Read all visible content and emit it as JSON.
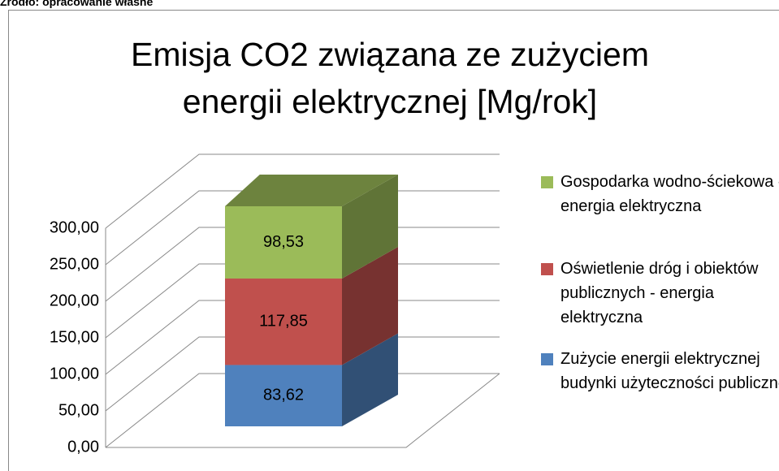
{
  "source": "Źródło: opracowanie własne",
  "chart_data": {
    "type": "bar3d_stacked",
    "title": "Emisja CO2 związana ze zużyciem energii elektrycznej [Mg/rok]",
    "categories": [
      null
    ],
    "series": [
      {
        "name": "Zużycie energii elektrycznej budynki użyteczności publicznej",
        "color": "#4f81bd",
        "values": [
          83.62
        ],
        "value_labels": [
          "83,62"
        ]
      },
      {
        "name": "Oświetlenie dróg i obiektów publicznych - energia elektryczna",
        "color": "#c0504d",
        "values": [
          117.85
        ],
        "value_labels": [
          "117,85"
        ]
      },
      {
        "name": "Gospodarka wodno-ściekowa - energia elektryczna",
        "color": "#9bbb59",
        "values": [
          98.53
        ],
        "value_labels": [
          "98,53"
        ]
      }
    ],
    "ylim": [
      0,
      300
    ],
    "yticks": [
      {
        "value": 0,
        "label": "0,00"
      },
      {
        "value": 50,
        "label": "50,00"
      },
      {
        "value": 100,
        "label": "100,00"
      },
      {
        "value": 150,
        "label": "150,00"
      },
      {
        "value": 200,
        "label": "200,00"
      },
      {
        "value": 250,
        "label": "250,00"
      },
      {
        "value": 300,
        "label": "300,00"
      }
    ],
    "grid": true,
    "legend": "right"
  }
}
